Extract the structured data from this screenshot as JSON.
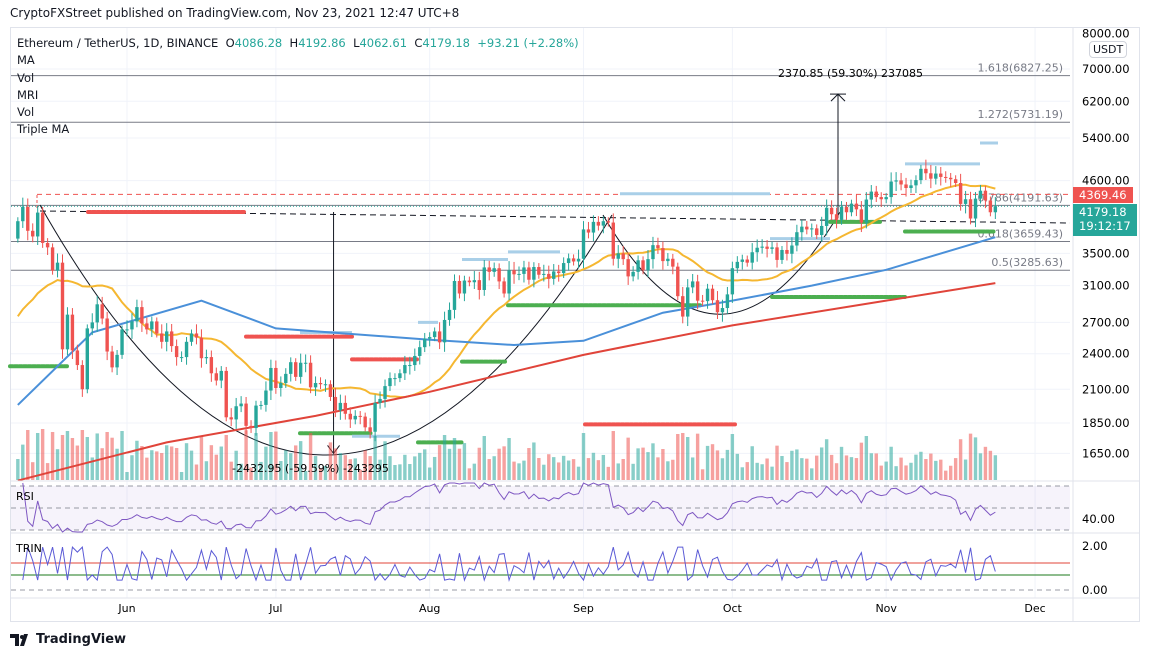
{
  "publisher": "CryptoFXStreet published on TradingView.com, Nov 23, 2021 12:47 UTC+8",
  "legend": {
    "symbol": "Ethereum / TetherUS, 1D, BINANCE",
    "o_label": "O",
    "o": "4086.28",
    "h_label": "H",
    "h": "4192.86",
    "l_label": "L",
    "l": "4062.61",
    "c_label": "C",
    "c": "4179.18",
    "change": "+93.21 (+2.28%)",
    "indicators": [
      "MA",
      "Vol",
      "MRI",
      "Vol",
      "Triple MA"
    ]
  },
  "currency_button": "USDT",
  "badges": {
    "ma_value": "4369.46",
    "last_price": "4179.18",
    "countdown": "19:12:17"
  },
  "panes": {
    "rsi_label": "RSI",
    "trin_label": "TRIN"
  },
  "footer": {
    "brand": "TradingView"
  },
  "colors": {
    "up": "#26a69a",
    "down": "#ef5350",
    "ma_short": "#f5b731",
    "ma_mid": "#4a90d9",
    "ma_long": "#e0443a",
    "rsi": "#7e57c2",
    "trin": "#5b5bd6"
  },
  "chart_data": {
    "type": "candlestick",
    "title": "Ethereum / TetherUS, 1D, BINANCE",
    "start_date": "2021-05-10",
    "x_ticks": [
      {
        "label": "Jun",
        "day": 22
      },
      {
        "label": "Jul",
        "day": 52
      },
      {
        "label": "Aug",
        "day": 83
      },
      {
        "label": "Sep",
        "day": 114
      },
      {
        "label": "Oct",
        "day": 144
      },
      {
        "label": "Nov",
        "day": 175
      },
      {
        "label": "Dec",
        "day": 205
      }
    ],
    "y_scale": "log",
    "y_ticks": [
      "8000.00",
      "7000.00",
      "6200.00",
      "5400.00",
      "4600.00",
      "3500.00",
      "3100.00",
      "2700.00",
      "2400.00",
      "2100.00",
      "1850.00",
      "1650.00"
    ],
    "ylim": [
      1560,
      8200
    ],
    "closes": [
      3950,
      4170,
      3810,
      3730,
      4080,
      3640,
      3580,
      3280,
      3380,
      2440,
      2780,
      2430,
      2300,
      2100,
      2640,
      2700,
      2890,
      2740,
      2420,
      2280,
      2390,
      2630,
      2630,
      2710,
      2860,
      2690,
      2630,
      2710,
      2590,
      2510,
      2610,
      2470,
      2370,
      2370,
      2510,
      2590,
      2550,
      2360,
      2370,
      2230,
      2170,
      2250,
      1890,
      1875,
      1970,
      1990,
      1830,
      1815,
      1975,
      1980,
      2090,
      2275,
      2110,
      2150,
      2225,
      2325,
      2200,
      2320,
      2320,
      2115,
      2150,
      2140,
      2140,
      2040,
      1940,
      1995,
      1915,
      1875,
      1900,
      1895,
      1820,
      1790,
      1995,
      2025,
      2125,
      2190,
      2190,
      2230,
      2300,
      2300,
      2380,
      2460,
      2540,
      2555,
      2610,
      2505,
      2725,
      2830,
      3155,
      3010,
      3160,
      3140,
      3165,
      3050,
      3320,
      3265,
      3310,
      3150,
      3010,
      3285,
      3235,
      3240,
      3320,
      3170,
      3325,
      3230,
      3240,
      3180,
      3270,
      3250,
      3375,
      3435,
      3395,
      3430,
      3830,
      3785,
      3940,
      3885,
      3950,
      3930,
      3430,
      3500,
      3425,
      3210,
      3265,
      3410,
      3285,
      3425,
      3610,
      3570,
      3400,
      3430,
      3330,
      2980,
      2760,
      3080,
      3150,
      2930,
      2925,
      3065,
      2935,
      2805,
      2850,
      3000,
      3310,
      3390,
      3420,
      3380,
      3515,
      3575,
      3590,
      3560,
      3580,
      3415,
      3545,
      3495,
      3605,
      3790,
      3870,
      3830,
      3845,
      3750,
      3880,
      4155,
      4055,
      3970,
      4170,
      4085,
      4220,
      4130,
      3930,
      4285,
      4415,
      4325,
      4290,
      4325,
      4585,
      4605,
      4535,
      4475,
      4520,
      4610,
      4810,
      4730,
      4635,
      4725,
      4665,
      4650,
      4625,
      4560,
      4215,
      4290,
      3990,
      4300,
      4430,
      4270,
      4085,
      4180
    ],
    "moving_averages": [
      {
        "name": "MA short",
        "type": "sma",
        "period": 20
      },
      {
        "name": "MA mid",
        "points": [
          [
            0,
            1980
          ],
          [
            15,
            2600
          ],
          [
            37,
            2930
          ],
          [
            52,
            2640
          ],
          [
            83,
            2530
          ],
          [
            100,
            2480
          ],
          [
            114,
            2520
          ],
          [
            130,
            2800
          ],
          [
            144,
            2930
          ],
          [
            160,
            3100
          ],
          [
            175,
            3290
          ],
          [
            197,
            3720
          ]
        ]
      },
      {
        "name": "MA long",
        "points": [
          [
            0,
            1490
          ],
          [
            30,
            1720
          ],
          [
            60,
            1900
          ],
          [
            83,
            2080
          ],
          [
            114,
            2390
          ],
          [
            144,
            2670
          ],
          [
            175,
            2930
          ],
          [
            197,
            3130
          ]
        ]
      }
    ],
    "fib_levels": [
      {
        "label": "1.618(6827.25)",
        "price": 6827.25
      },
      {
        "label": "1.272(5731.19)",
        "price": 5731.19
      },
      {
        "label": "0.786(4191.63)",
        "price": 4191.63
      },
      {
        "label": "0.618(3659.43)",
        "price": 3659.43
      },
      {
        "label": "0.5(3285.63)",
        "price": 3285.63
      }
    ],
    "measures": [
      {
        "label": "-2432.95 (-59.59%) -243295",
        "from": 4090,
        "to": 1650,
        "day": 60
      },
      {
        "label": "2370.85 (59.30%) 237085",
        "from": 4000,
        "to": 6370,
        "day": 165
      }
    ],
    "rsi": {
      "period": 14,
      "tick": "40.00",
      "bands": [
        70,
        50,
        30
      ]
    },
    "trin": {
      "ticks": [
        "2.00",
        "0.00"
      ],
      "upper": 1.23,
      "lower": 0.68
    }
  }
}
